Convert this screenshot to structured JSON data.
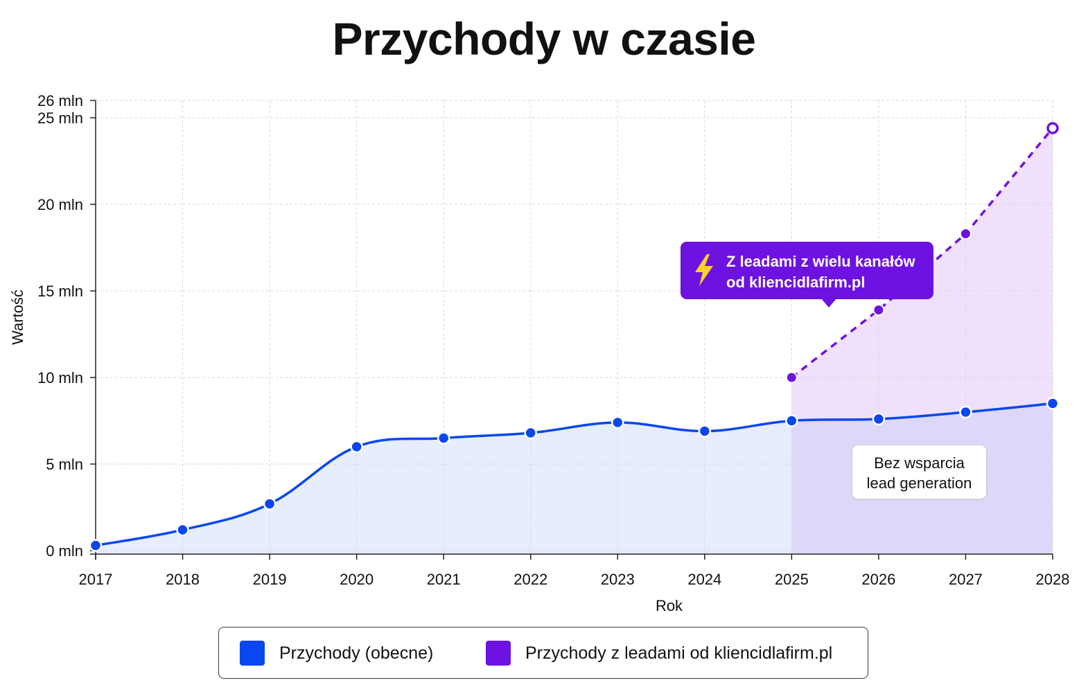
{
  "chart_data": {
    "type": "line",
    "title": "Przychody w czasie",
    "xlabel": "Rok",
    "ylabel": "Wartość",
    "x": [
      2017,
      2018,
      2019,
      2020,
      2021,
      2022,
      2023,
      2024,
      2025,
      2026,
      2027,
      2028
    ],
    "x_tick_labels": [
      "2017",
      "2018",
      "2019",
      "2020",
      "2021",
      "2022",
      "2023",
      "2024",
      "2025",
      "2026",
      "2027",
      "2028"
    ],
    "ylim": [
      0,
      26
    ],
    "y_ticks": [
      0,
      5,
      10,
      15,
      20,
      25,
      26
    ],
    "y_tick_labels": [
      "0 mln",
      "5 mln",
      "10 mln",
      "15 mln",
      "20 mln",
      "25 mln",
      "26 mln"
    ],
    "grid": true,
    "legend_placement": "bottom",
    "series": [
      {
        "name": "Przychody (obecne)",
        "color": "#0a47ef",
        "style": "solid",
        "x": [
          2017,
          2018,
          2019,
          2020,
          2021,
          2022,
          2023,
          2024,
          2025,
          2026,
          2027,
          2028
        ],
        "values": [
          0.3,
          1.2,
          2.7,
          6.0,
          6.5,
          6.8,
          7.4,
          6.9,
          7.5,
          7.6,
          8.0,
          8.5
        ]
      },
      {
        "name": "Przychody z leadami od kliencidlafirm.pl",
        "color": "#6d12e0",
        "style": "dashed",
        "x": [
          2025,
          2026,
          2027,
          2028
        ],
        "values": [
          10.0,
          13.9,
          18.3,
          24.4
        ]
      }
    ],
    "annotations": [
      {
        "text_lines": [
          "Z leadami z wielu kanałów",
          "od kliencidlafirm.pl"
        ],
        "style": "purple-callout",
        "icon": "lightning-bolt-icon"
      },
      {
        "text_lines": [
          "Bez wsparcia",
          "lead generation"
        ],
        "style": "white-callout"
      }
    ]
  },
  "colors": {
    "blue": "#0a47ef",
    "purple": "#6d12e0",
    "blue_fill": "#e6edfc",
    "purple_fill": "#efe0fb",
    "overlap_fill": "#ddd8fa",
    "grid": "#d8d8d8",
    "bolt": "#ffd21f"
  }
}
